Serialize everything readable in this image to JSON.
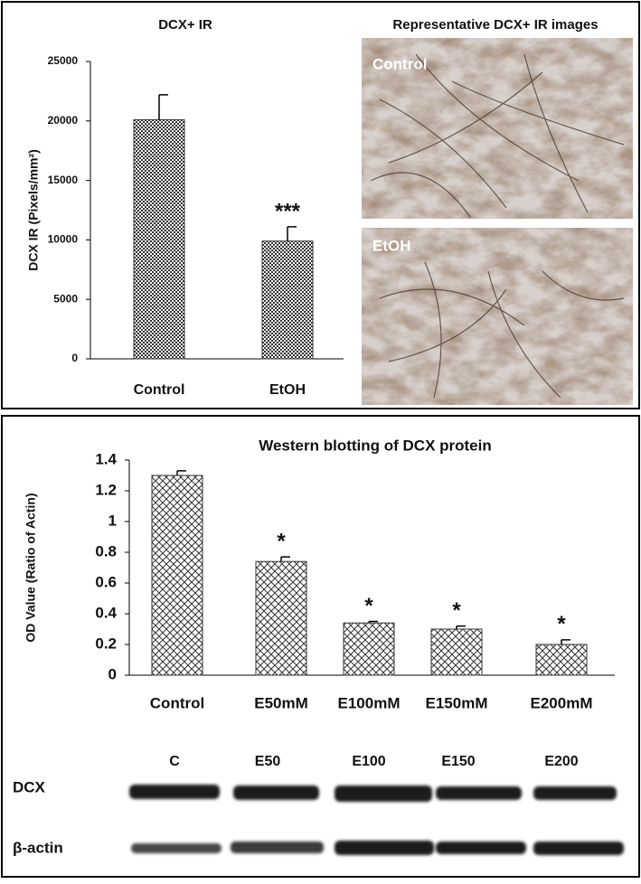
{
  "chart_data": [
    {
      "type": "bar",
      "title": "DCX+ IR",
      "y_label": "DCX IR  (Pixels/mm²)",
      "categories": [
        "Control",
        "EtOH"
      ],
      "values": [
        20100,
        9900
      ],
      "errors": [
        2100,
        1200
      ],
      "markers": [
        null,
        "***"
      ],
      "color": "#333333",
      "pattern": "checker",
      "ylim": [
        0,
        25000
      ],
      "yticks": [
        0,
        5000,
        10000,
        15000,
        20000,
        25000
      ]
    },
    {
      "type": "bar",
      "title": "Western blotting of DCX protein",
      "y_label": "OD Value (Ratio of Actin)",
      "categories": [
        "Control",
        "E50mM",
        "E100mM",
        "E150mM",
        "E200mM"
      ],
      "values": [
        1.3,
        0.74,
        0.34,
        0.3,
        0.2
      ],
      "errors": [
        0.03,
        0.03,
        0.01,
        0.02,
        0.03
      ],
      "markers": [
        null,
        "*",
        "*",
        "*",
        "*"
      ],
      "color": "#333333",
      "pattern": "crosshatch",
      "ylim": [
        0,
        1.4
      ],
      "yticks": [
        0,
        0.2,
        0.4,
        0.6,
        0.8,
        1,
        1.2,
        1.4
      ]
    }
  ],
  "images": {
    "title": "Representative DCX+ IR images",
    "labels": [
      "Control",
      "EtOH"
    ]
  },
  "blot": {
    "lanes": [
      "C",
      "E50",
      "E100",
      "E150",
      "E200"
    ],
    "rows": [
      "DCX",
      "β-actin"
    ]
  }
}
